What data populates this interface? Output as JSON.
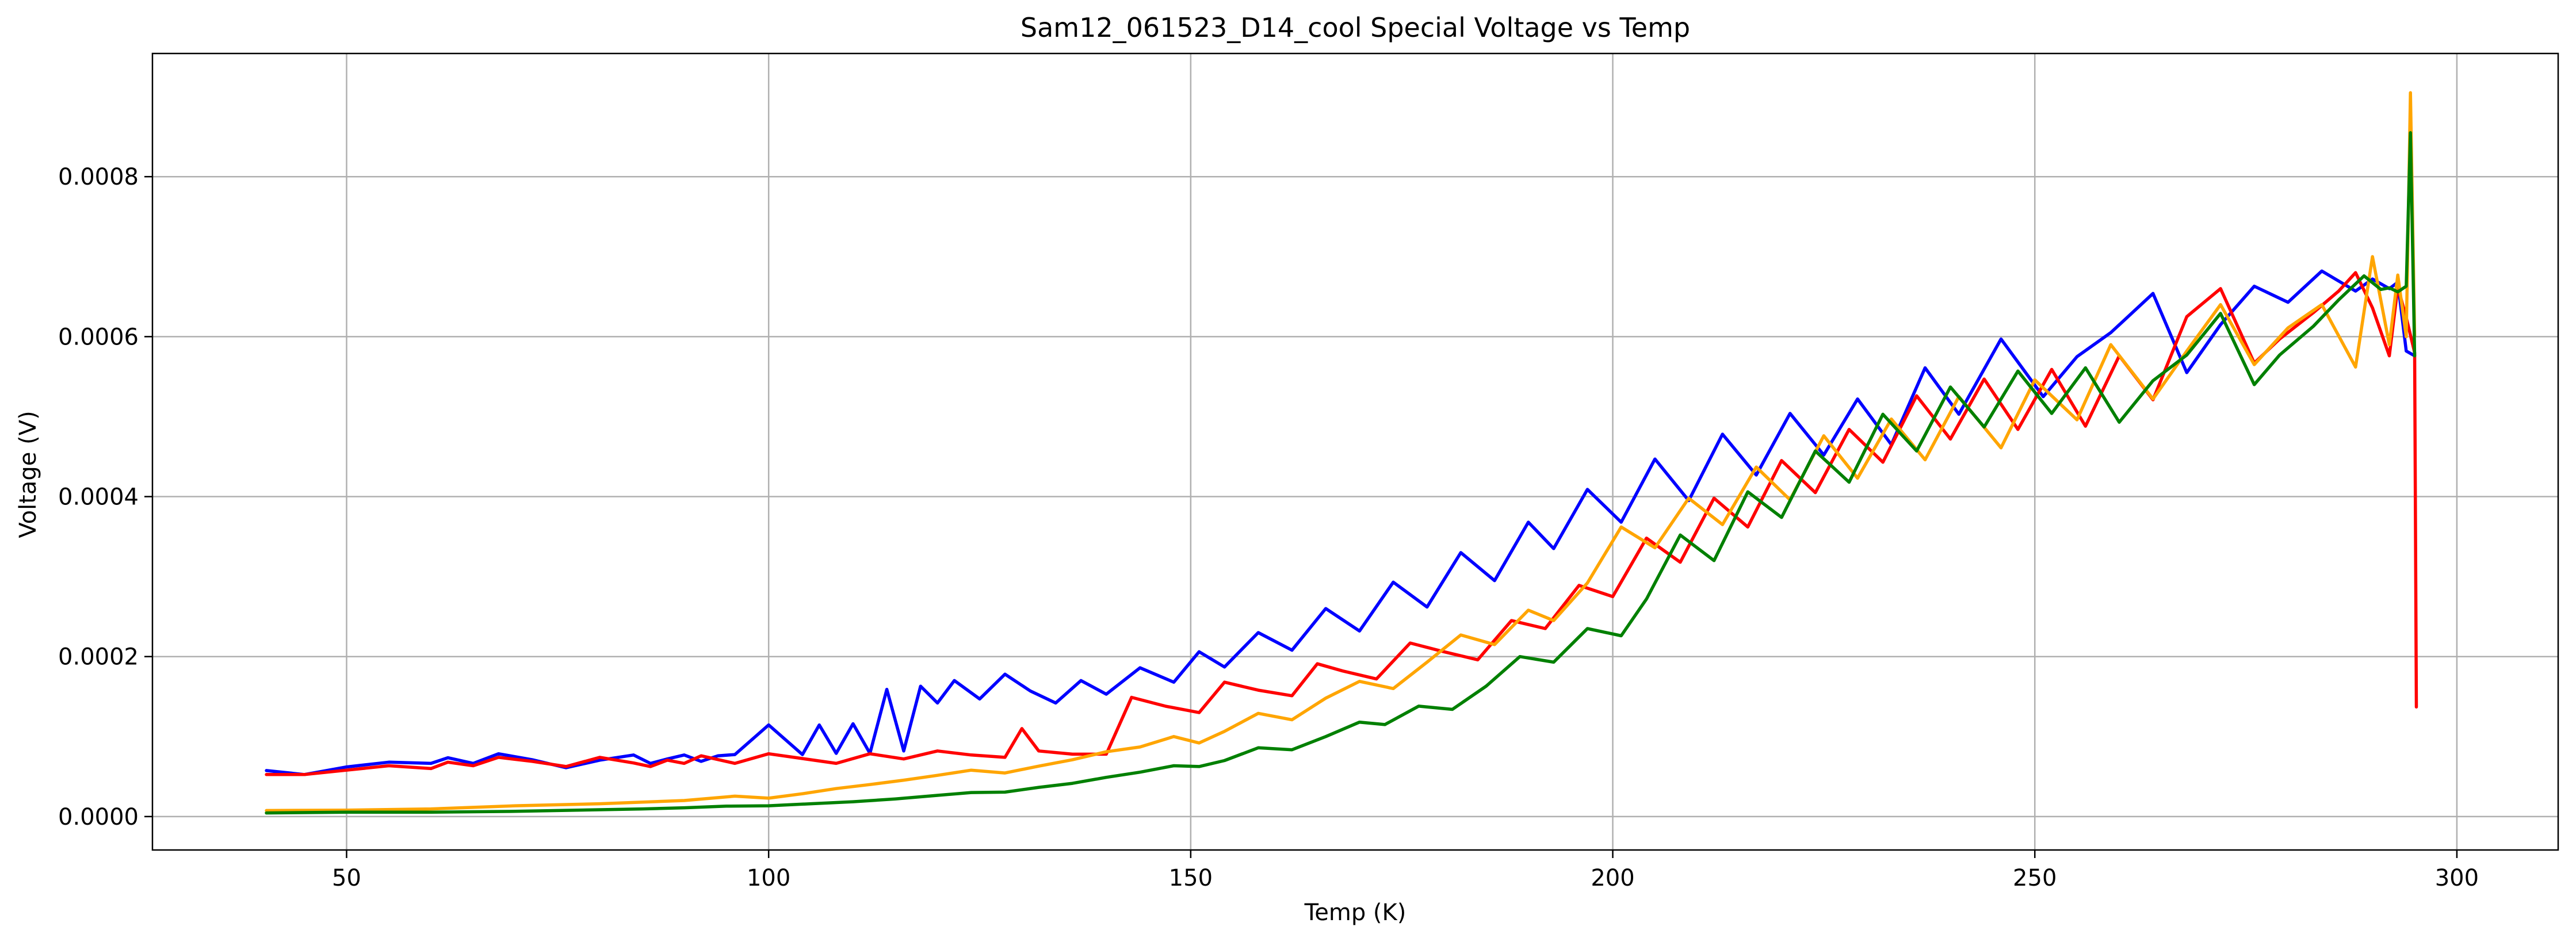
{
  "chart_data": {
    "type": "line",
    "title": "Sam12_061523_D14_cool Special Voltage vs Temp",
    "xlabel": "Temp (K)",
    "ylabel": "Voltage (V)",
    "xlim": [
      27,
      312
    ],
    "ylim": [
      -4.18e-05,
      0.000954
    ],
    "x_ticks": [
      50,
      100,
      150,
      200,
      250,
      300
    ],
    "x_tick_labels": [
      "50",
      "100",
      "150",
      "200",
      "250",
      "300"
    ],
    "y_ticks": [
      0,
      0.0002,
      0.0004,
      0.0006,
      0.0008
    ],
    "y_tick_labels": [
      "0.0000",
      "0.0002",
      "0.0004",
      "0.0006",
      "0.0008"
    ],
    "grid": true,
    "legend": "none",
    "series": [
      {
        "color": "#0000ff",
        "x": [
          40.5,
          45,
          50,
          55,
          60,
          62,
          65,
          68,
          72,
          76,
          80,
          84,
          86,
          88,
          90,
          92,
          94,
          96,
          100,
          104,
          106,
          108,
          110,
          112,
          114,
          116,
          118,
          120,
          122,
          125,
          128,
          131,
          134,
          137,
          140,
          144,
          148,
          151,
          154,
          158,
          162,
          166,
          170,
          174,
          178,
          182,
          186,
          190,
          193,
          197,
          201,
          205,
          209,
          213,
          217,
          221,
          225,
          229,
          233,
          237,
          241,
          246,
          251,
          255,
          259,
          264,
          268,
          272,
          276,
          280,
          284,
          288,
          290,
          292,
          293,
          294,
          295
        ],
        "y": [
          5.75e-05,
          5.25e-05,
          6.2e-05,
          6.8e-05,
          6.65e-05,
          7.35e-05,
          6.65e-05,
          7.85e-05,
          7.1e-05,
          6.1e-05,
          7.05e-05,
          7.7e-05,
          6.65e-05,
          7.2e-05,
          7.7e-05,
          6.9e-05,
          7.6e-05,
          7.75e-05,
          0.0001145,
          7.75e-05,
          0.0001145,
          7.9e-05,
          0.000116,
          7.9e-05,
          0.000159,
          8.2e-05,
          0.000163,
          0.000142,
          0.00017,
          0.000147,
          0.000178,
          0.000157,
          0.000142,
          0.00017,
          0.000153,
          0.000186,
          0.000168,
          0.000206,
          0.000187,
          0.00023,
          0.000208,
          0.00026,
          0.000232,
          0.000293,
          0.000262,
          0.00033,
          0.000295,
          0.000368,
          0.000335,
          0.000409,
          0.000368,
          0.000447,
          0.000395,
          0.000478,
          0.000427,
          0.000504,
          0.000452,
          0.000522,
          0.000465,
          0.000561,
          0.000503,
          0.000597,
          0.000525,
          0.000575,
          0.000605,
          0.000654,
          0.000555,
          0.000615,
          0.000663,
          0.000643,
          0.000682,
          0.000657,
          0.000672,
          0.00066,
          0.000668,
          0.000582,
          0.000576
        ]
      },
      {
        "color": "#ff0000",
        "x": [
          40.5,
          45,
          50,
          55,
          60,
          62,
          65,
          68,
          72,
          76,
          80,
          84,
          86,
          88,
          90,
          92,
          96,
          100,
          104,
          108,
          112,
          116,
          120,
          124,
          128,
          130,
          132,
          136,
          140,
          143,
          147,
          151,
          154,
          158,
          162,
          165,
          168,
          172,
          176,
          180,
          184,
          188,
          192,
          196,
          200,
          204,
          208,
          212,
          216,
          220,
          224,
          228,
          232,
          236,
          240,
          244,
          248,
          252,
          256,
          260,
          264,
          268,
          272,
          276,
          279,
          283,
          286,
          288,
          290,
          292,
          293,
          294,
          295,
          295.2
        ],
        "y": [
          5.25e-05,
          5.25e-05,
          5.8e-05,
          6.35e-05,
          6e-05,
          6.8e-05,
          6.35e-05,
          7.4e-05,
          6.9e-05,
          6.25e-05,
          7.4e-05,
          6.7e-05,
          6.25e-05,
          7.05e-05,
          6.65e-05,
          7.6e-05,
          6.65e-05,
          7.85e-05,
          7.25e-05,
          6.65e-05,
          7.85e-05,
          7.2e-05,
          8.2e-05,
          7.7e-05,
          7.4e-05,
          0.00011,
          8.2e-05,
          7.8e-05,
          7.8e-05,
          0.000149,
          0.000138,
          0.00013,
          0.000168,
          0.000158,
          0.000151,
          0.000191,
          0.000182,
          0.000172,
          0.000217,
          0.000206,
          0.000196,
          0.000245,
          0.000235,
          0.000289,
          0.000275,
          0.000348,
          0.000318,
          0.000398,
          0.000362,
          0.000445,
          0.000405,
          0.000484,
          0.000443,
          0.000526,
          0.000472,
          0.000547,
          0.000484,
          0.000559,
          0.000488,
          0.000576,
          0.000521,
          0.000625,
          0.00066,
          0.000567,
          0.000597,
          0.00063,
          0.000657,
          0.00068,
          0.000636,
          0.000576,
          0.000662,
          0.000624,
          0.00058,
          0.000137
        ]
      },
      {
        "color": "#ffa500",
        "x": [
          40.5,
          50,
          60,
          70,
          80,
          90,
          96,
          100,
          104,
          108,
          112,
          116,
          120,
          124,
          128,
          132,
          136,
          140,
          144,
          148,
          151,
          154,
          158,
          162,
          166,
          170,
          174,
          178,
          182,
          186,
          190,
          193,
          197,
          201,
          205,
          209,
          213,
          217,
          221,
          225,
          229,
          233,
          237,
          241,
          246,
          250,
          255,
          259,
          264,
          268,
          272,
          276,
          280,
          284,
          288,
          290,
          292,
          293,
          294,
          294.5,
          295
        ],
        "y": [
          7.5e-06,
          8e-06,
          9.5e-06,
          1.35e-05,
          1.6e-05,
          2e-05,
          2.55e-05,
          2.3e-05,
          2.85e-05,
          3.5e-05,
          4e-05,
          4.55e-05,
          5.15e-05,
          5.8e-05,
          5.45e-05,
          6.3e-05,
          7.1e-05,
          8.1e-05,
          8.7e-05,
          0.0001,
          9.2e-05,
          0.0001065,
          0.000129,
          0.000121,
          0.000148,
          0.000169,
          0.00016,
          0.000193,
          0.000227,
          0.000215,
          0.000258,
          0.000245,
          0.000292,
          0.000362,
          0.000336,
          0.000398,
          0.000365,
          0.000437,
          0.000396,
          0.000476,
          0.000423,
          0.000497,
          0.000446,
          0.000525,
          0.000461,
          0.000546,
          0.000496,
          0.00059,
          0.000522,
          0.000582,
          0.00064,
          0.000565,
          0.000611,
          0.00064,
          0.000562,
          0.0007,
          0.00059,
          0.000677,
          0.0006,
          0.000905,
          0.000601
        ]
      },
      {
        "color": "#008000",
        "x": [
          40.5,
          50,
          60,
          70,
          80,
          85,
          90,
          95,
          100,
          105,
          110,
          115,
          120,
          124,
          128,
          132,
          136,
          140,
          144,
          148,
          151,
          154,
          158,
          162,
          166,
          170,
          173,
          177,
          181,
          185,
          189,
          193,
          197,
          201,
          204,
          208,
          212,
          216,
          220,
          224,
          228,
          232,
          236,
          240,
          244,
          248,
          252,
          256,
          260,
          264,
          268,
          272,
          276,
          279,
          283,
          286,
          289,
          291,
          292,
          293,
          294,
          294.5,
          295
        ],
        "y": [
          4.5e-06,
          5.5e-06,
          5.5e-06,
          6.5e-06,
          8.5e-06,
          9.5e-06,
          1.1e-05,
          1.3e-05,
          1.35e-05,
          1.6e-05,
          1.85e-05,
          2.2e-05,
          2.65e-05,
          3e-05,
          3.05e-05,
          3.65e-05,
          4.15e-05,
          4.9e-05,
          5.55e-05,
          6.35e-05,
          6.25e-05,
          7e-05,
          8.6e-05,
          8.35e-05,
          0.0001,
          0.000118,
          0.000115,
          0.000138,
          0.000134,
          0.000163,
          0.0002,
          0.000193,
          0.000235,
          0.000226,
          0.000272,
          0.000352,
          0.00032,
          0.000406,
          0.000374,
          0.000457,
          0.000418,
          0.000503,
          0.000457,
          0.000537,
          0.000487,
          0.000557,
          0.000504,
          0.000561,
          0.000493,
          0.000545,
          0.000577,
          0.000629,
          0.00054,
          0.000577,
          0.000613,
          0.000646,
          0.000676,
          0.000659,
          0.000661,
          0.000656,
          0.000663,
          0.000855,
          0.000576
        ]
      }
    ]
  }
}
